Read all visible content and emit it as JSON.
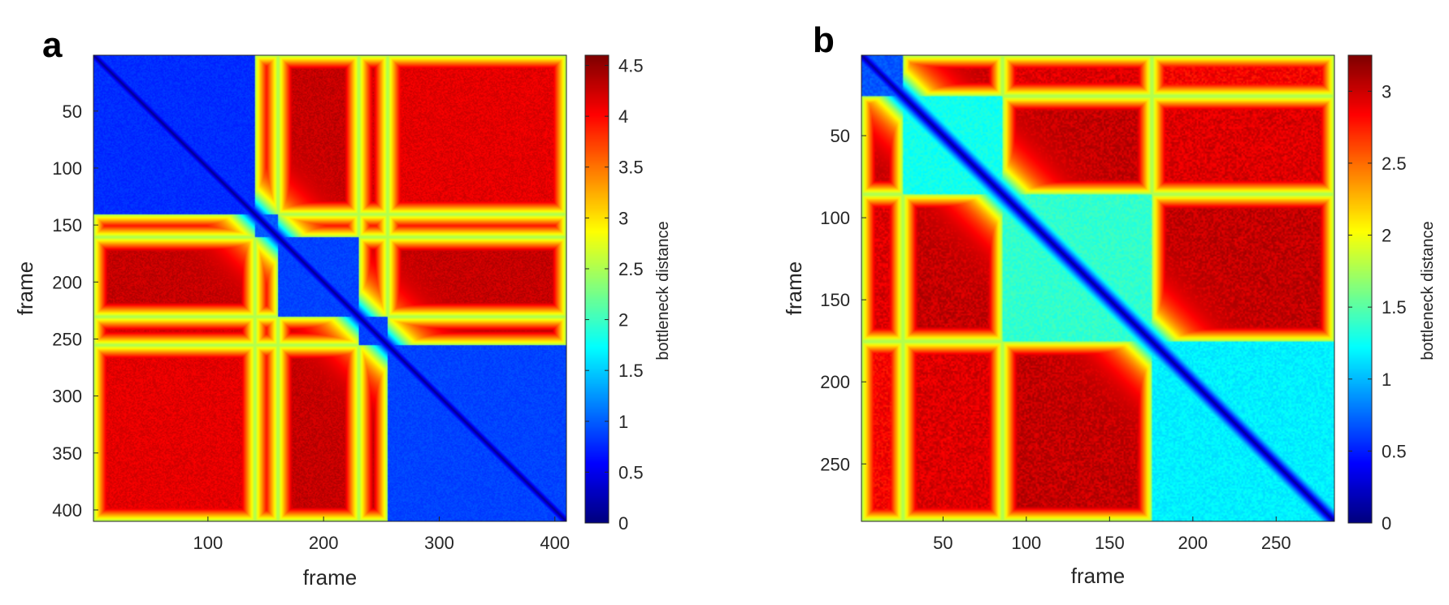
{
  "chart_data": [
    {
      "type": "heatmap",
      "panel_label": "a",
      "xlabel": "frame",
      "ylabel": "frame",
      "n": 410,
      "xlim": [
        1,
        410
      ],
      "ylim": [
        1,
        410
      ],
      "x_ticks": [
        100,
        200,
        300,
        400
      ],
      "y_ticks": [
        50,
        100,
        150,
        200,
        250,
        300,
        350,
        400
      ],
      "colorbar": {
        "label": "bottleneck distance",
        "range": [
          0,
          4.6
        ],
        "ticks": [
          "0",
          "0.5",
          "1",
          "1.5",
          "2",
          "2.5",
          "3",
          "3.5",
          "4",
          "4.5"
        ],
        "tick_values": [
          0,
          0.5,
          1,
          1.5,
          2,
          2.5,
          3,
          3.5,
          4,
          4.5
        ]
      },
      "colormap": "jet",
      "segments": [
        [
          1,
          140
        ],
        [
          141,
          160
        ],
        [
          161,
          230
        ],
        [
          231,
          255
        ],
        [
          256,
          410
        ]
      ],
      "segment_level": [
        0.7,
        0.9,
        0.8,
        0.8,
        0.8
      ],
      "between_level": 4.3
    },
    {
      "type": "heatmap",
      "panel_label": "b",
      "xlabel": "frame",
      "ylabel": "frame",
      "n": 285,
      "xlim": [
        1,
        285
      ],
      "ylim": [
        1,
        285
      ],
      "x_ticks": [
        50,
        100,
        150,
        200,
        250
      ],
      "y_ticks": [
        50,
        100,
        150,
        200,
        250
      ],
      "colorbar": {
        "label": "bottleneck distance",
        "range": [
          0,
          3.25
        ],
        "ticks": [
          "0",
          "0.5",
          "1",
          "1.5",
          "2",
          "2.5",
          "3"
        ],
        "tick_values": [
          0,
          0.5,
          1,
          1.5,
          2,
          2.5,
          3
        ]
      },
      "colormap": "jet",
      "segments": [
        [
          1,
          25
        ],
        [
          26,
          85
        ],
        [
          86,
          175
        ],
        [
          176,
          285
        ]
      ],
      "segment_level": [
        0.6,
        1.2,
        1.3,
        1.1
      ],
      "between_level": 3.0
    }
  ]
}
